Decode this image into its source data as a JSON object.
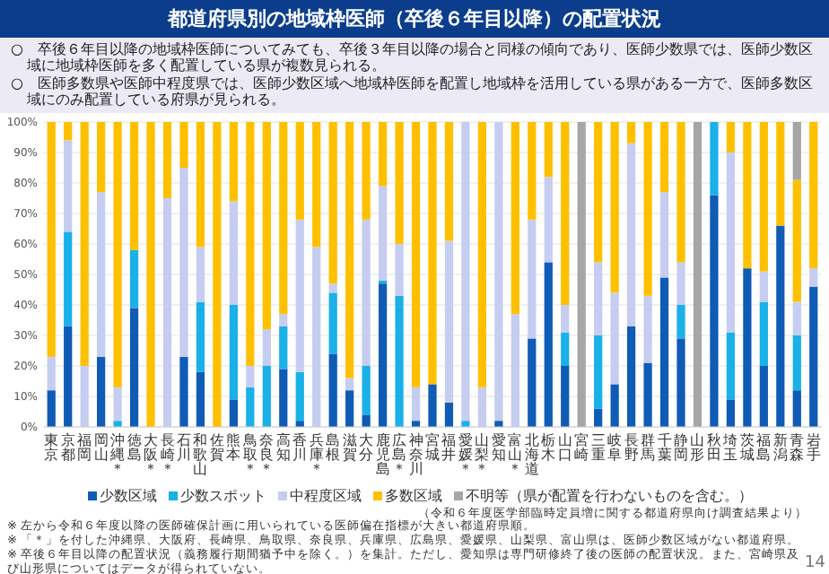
{
  "chart_data": {
    "type": "bar",
    "stacked": true,
    "title": "都道府県別の地域枠医師（卒後６年目以降）の配置状況",
    "subtitle": "○　卒後６年目以降の地域枠医師についてみても、卒後３年目以降の場合と同様の傾向であり、医師少数県では、医師少数区域に地域枠医師を多く配置している県が複数見られる。\n○　医師多数県や医師中程度県では、医師少数区域へ地域枠医師を配置し地域枠を活用している県がある一方で、医師多数区域にのみ配置している府県が見られる。",
    "categories": [
      "東京",
      "京都",
      "福岡",
      "岡山",
      "沖縄＊",
      "徳島",
      "大阪＊",
      "長崎＊",
      "石川",
      "和歌山",
      "佐賀",
      "熊本",
      "鳥取＊",
      "奈良＊",
      "高知",
      "香川",
      "兵庫＊",
      "島根",
      "滋賀",
      "大分",
      "鹿児島",
      "広島＊",
      "神奈川",
      "宮城",
      "福井",
      "愛媛＊",
      "山梨＊",
      "愛知",
      "富山＊",
      "北海道",
      "栃木",
      "山口",
      "宮崎",
      "三重",
      "岐阜",
      "長野",
      "群馬",
      "千葉",
      "静岡",
      "山形",
      "秋田",
      "埼玉",
      "茨城",
      "福島",
      "新潟",
      "青森",
      "岩手"
    ],
    "series": [
      {
        "name": "少数区域",
        "color": "#0f5bb5",
        "values": [
          12,
          33,
          0,
          23,
          0,
          39,
          0,
          0,
          23,
          18,
          0,
          9,
          0,
          0,
          19,
          2,
          0,
          24,
          12,
          4,
          47,
          0,
          2,
          14,
          8,
          0,
          0,
          2,
          0,
          29,
          54,
          20,
          0,
          6,
          14,
          33,
          21,
          49,
          29,
          0,
          76,
          9,
          52,
          20,
          66,
          12,
          46
        ]
      },
      {
        "name": "少数スポット",
        "color": "#1ab0e8",
        "values": [
          0,
          31,
          0,
          0,
          2,
          19,
          0,
          0,
          0,
          23,
          0,
          31,
          13,
          20,
          14,
          16,
          0,
          20,
          0,
          16,
          1,
          43,
          0,
          0,
          0,
          2,
          0,
          0,
          0,
          0,
          0,
          11,
          0,
          24,
          0,
          0,
          0,
          0,
          11,
          0,
          24,
          22,
          0,
          21,
          0,
          18,
          0
        ]
      },
      {
        "name": "中程度区域",
        "color": "#c5cdf0",
        "values": [
          11,
          30,
          20,
          54,
          11,
          0,
          0,
          75,
          62,
          18,
          0,
          34,
          7,
          12,
          4,
          50,
          59,
          3,
          4,
          48,
          31,
          17,
          11,
          0,
          53,
          98,
          13,
          98,
          37,
          39,
          28,
          9,
          0,
          24,
          30,
          60,
          22,
          28,
          14,
          0,
          0,
          59,
          0,
          10,
          0,
          11,
          6
        ]
      },
      {
        "name": "多数区域",
        "color": "#ffc000",
        "values": [
          77,
          6,
          80,
          23,
          87,
          42,
          100,
          25,
          15,
          41,
          100,
          26,
          80,
          68,
          63,
          32,
          41,
          53,
          84,
          32,
          21,
          40,
          87,
          86,
          39,
          0,
          87,
          0,
          63,
          32,
          18,
          60,
          0,
          46,
          56,
          7,
          57,
          23,
          46,
          0,
          0,
          10,
          48,
          49,
          34,
          40,
          48
        ]
      },
      {
        "name": "不明等（県が配置を行わないものを含む。）",
        "color": "#a6a6a6",
        "values": [
          0,
          0,
          0,
          0,
          0,
          0,
          0,
          0,
          0,
          0,
          0,
          0,
          0,
          0,
          0,
          0,
          0,
          0,
          0,
          0,
          0,
          0,
          0,
          0,
          0,
          0,
          0,
          0,
          0,
          0,
          0,
          0,
          100,
          0,
          0,
          0,
          0,
          0,
          0,
          100,
          0,
          0,
          0,
          0,
          0,
          19,
          0
        ]
      }
    ],
    "ylim": [
      0,
      100
    ],
    "yticks": [
      {
        "value": 0,
        "label": "0%"
      },
      {
        "value": 10,
        "label": "10%"
      },
      {
        "value": 20,
        "label": "20%"
      },
      {
        "value": 30,
        "label": "30%"
      },
      {
        "value": 40,
        "label": "40%"
      },
      {
        "value": 50,
        "label": "50%"
      },
      {
        "value": 60,
        "label": "60%"
      },
      {
        "value": 70,
        "label": "70%"
      },
      {
        "value": 80,
        "label": "80%"
      },
      {
        "value": 90,
        "label": "90%"
      },
      {
        "value": 100,
        "label": "100%"
      }
    ],
    "grid": "y",
    "legend": "bottom",
    "annotations": [
      "（令和６年度医学部臨時定員増に関する都道府県向け調査結果より）",
      "※ 左から令和６年度以降の医師確保計画に用いられている医師偏在指標が大きい都道府県順。",
      "※ 「＊」を付した沖縄県、大阪府、長崎県、鳥取県、奈良県、兵庫県、広島県、愛媛県、山梨県、富山県は、医師少数区域がない都道府県。",
      "※ 卒後６年目以降の配置状況（義務履行期間猶予中を除く。）を集計。ただし、愛知県は専門研修終了後の医師の配置状況。また、宮崎県及び山形県についてはデータが得られていない。",
      "14"
    ]
  }
}
